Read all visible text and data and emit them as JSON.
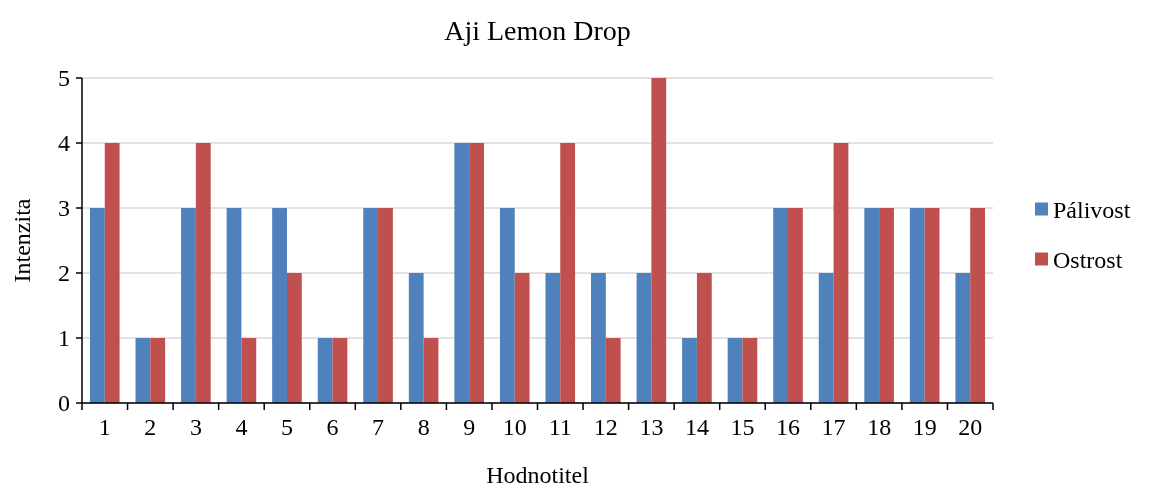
{
  "chart_data": {
    "type": "bar",
    "title": "Aji Lemon Drop",
    "xlabel": "Hodnotitel",
    "ylabel": "Intenzita",
    "categories": [
      "1",
      "2",
      "3",
      "4",
      "5",
      "6",
      "7",
      "8",
      "9",
      "10",
      "11",
      "12",
      "13",
      "14",
      "15",
      "16",
      "17",
      "18",
      "19",
      "20"
    ],
    "series": [
      {
        "name": "Pálivost",
        "color": "#4f81bd",
        "values": [
          3,
          1,
          3,
          3,
          3,
          1,
          3,
          2,
          4,
          3,
          2,
          2,
          2,
          1,
          1,
          3,
          2,
          3,
          3,
          2
        ]
      },
      {
        "name": "Ostrost",
        "color": "#c0504d",
        "values": [
          4,
          1,
          4,
          1,
          2,
          1,
          3,
          1,
          4,
          2,
          4,
          1,
          5,
          2,
          1,
          3,
          4,
          3,
          3,
          3
        ]
      }
    ],
    "ylim": [
      0,
      5
    ],
    "yticks": [
      0,
      1,
      2,
      3,
      4,
      5
    ],
    "grid": "y",
    "legend": "right"
  }
}
